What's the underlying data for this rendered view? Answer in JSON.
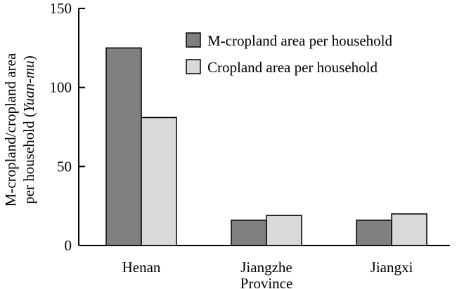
{
  "chart_data": {
    "type": "bar",
    "categories": [
      "Henan",
      "Jiangzhe Province",
      "Jiangxi"
    ],
    "category_lines": [
      [
        "Henan"
      ],
      [
        "Jiangzhe",
        "Province"
      ],
      [
        "Jiangxi"
      ]
    ],
    "series": [
      {
        "name": "M-cropland area per household",
        "values": [
          125,
          16,
          16
        ],
        "color": "#808080"
      },
      {
        "name": "Cropland area per household",
        "values": [
          81,
          19,
          20
        ],
        "color": "#d9d9db"
      }
    ],
    "ylabel_line1": "M-cropland/cropland area",
    "ylabel_line2_prefix": "per household (",
    "ylabel_line2_unit": "Yuan-mu",
    "ylabel_line2_suffix": ")",
    "ylim": [
      0,
      150
    ],
    "yticks": [
      0,
      50,
      100,
      150
    ],
    "legend_position": "top-right",
    "grid": false
  }
}
